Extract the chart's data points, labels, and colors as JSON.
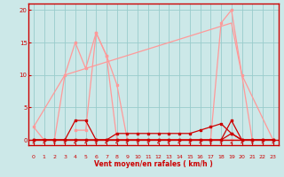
{
  "bg_color": "#cce8e8",
  "grid_color": "#99cccc",
  "xlabel": "Vent moyen/en rafales ( km/h )",
  "xlim": [
    -0.5,
    23.5
  ],
  "ylim": [
    -0.8,
    21
  ],
  "yticks": [
    0,
    5,
    10,
    15,
    20
  ],
  "xticks": [
    0,
    1,
    2,
    3,
    4,
    5,
    6,
    7,
    8,
    9,
    10,
    11,
    12,
    13,
    14,
    15,
    16,
    17,
    18,
    19,
    20,
    21,
    22,
    23
  ],
  "color_dark_red": "#cc0000",
  "color_light_red": "#ff9999",
  "lines": [
    {
      "x": [
        0,
        1,
        2,
        3,
        4,
        5,
        6,
        7,
        8,
        9,
        10,
        11,
        12,
        13,
        14,
        15,
        16,
        17,
        18,
        19,
        20,
        21,
        22,
        23
      ],
      "y": [
        2,
        0,
        0,
        10,
        15,
        11,
        16.5,
        13,
        8.5,
        0,
        0,
        0,
        0,
        0,
        0,
        0,
        0,
        0,
        18,
        20,
        10,
        0,
        0,
        0
      ],
      "color": "#ff9999",
      "lw": 0.9,
      "marker": "s",
      "ms": 2
    },
    {
      "x": [
        0,
        3,
        19,
        20,
        23
      ],
      "y": [
        2,
        10,
        18,
        10,
        0
      ],
      "color": "#ff9999",
      "lw": 0.9,
      "marker": null,
      "ms": 0
    },
    {
      "x": [
        4,
        5,
        6,
        7,
        8,
        19,
        20
      ],
      "y": [
        1.5,
        1.5,
        16.5,
        13,
        0,
        0,
        0
      ],
      "color": "#ff9999",
      "lw": 0.9,
      "marker": "s",
      "ms": 2
    },
    {
      "x": [
        0,
        1,
        2,
        3,
        4,
        5,
        6,
        7,
        8,
        9,
        10,
        11,
        12,
        13,
        14,
        15,
        16,
        17,
        18,
        19,
        20,
        21,
        22,
        23
      ],
      "y": [
        0,
        0,
        0,
        0,
        3,
        3,
        0,
        0,
        0,
        0,
        0,
        0,
        0,
        0,
        0,
        0,
        0,
        0,
        0,
        3,
        0,
        0,
        0,
        0
      ],
      "color": "#cc0000",
      "lw": 0.9,
      "marker": "s",
      "ms": 2
    },
    {
      "x": [
        0,
        1,
        2,
        3,
        4,
        5,
        6,
        7,
        8,
        9,
        10,
        11,
        12,
        13,
        14,
        15,
        16,
        17,
        18,
        19,
        20,
        21,
        22,
        23
      ],
      "y": [
        0,
        0,
        0,
        0,
        0,
        0,
        0,
        0,
        1,
        1,
        1,
        1,
        1,
        1,
        1,
        1,
        1.5,
        2,
        2.5,
        1,
        0,
        0,
        0,
        0
      ],
      "color": "#cc0000",
      "lw": 0.9,
      "marker": "s",
      "ms": 2
    },
    {
      "x": [
        0,
        1,
        2,
        3,
        4,
        5,
        6,
        7,
        8,
        9,
        10,
        11,
        12,
        13,
        14,
        15,
        16,
        17,
        18,
        19,
        20,
        21,
        22,
        23
      ],
      "y": [
        0,
        0,
        0,
        0,
        0,
        0,
        0,
        0,
        0,
        0,
        0,
        0,
        0,
        0,
        0,
        0,
        0,
        0,
        0,
        1,
        0,
        0,
        0,
        0
      ],
      "color": "#cc0000",
      "lw": 0.9,
      "marker": "s",
      "ms": 2
    }
  ],
  "arrows_x": [
    0,
    1,
    2,
    3,
    4,
    5,
    6,
    7,
    8,
    9,
    10,
    11,
    12,
    13,
    14,
    15,
    16,
    17,
    18,
    19,
    20,
    21,
    22,
    23
  ],
  "arrows_angle": [
    225,
    225,
    225,
    225,
    270,
    225,
    225,
    270,
    270,
    270,
    315,
    315,
    270,
    270,
    270,
    225,
    225,
    225,
    225,
    225,
    225,
    225,
    225,
    225
  ]
}
